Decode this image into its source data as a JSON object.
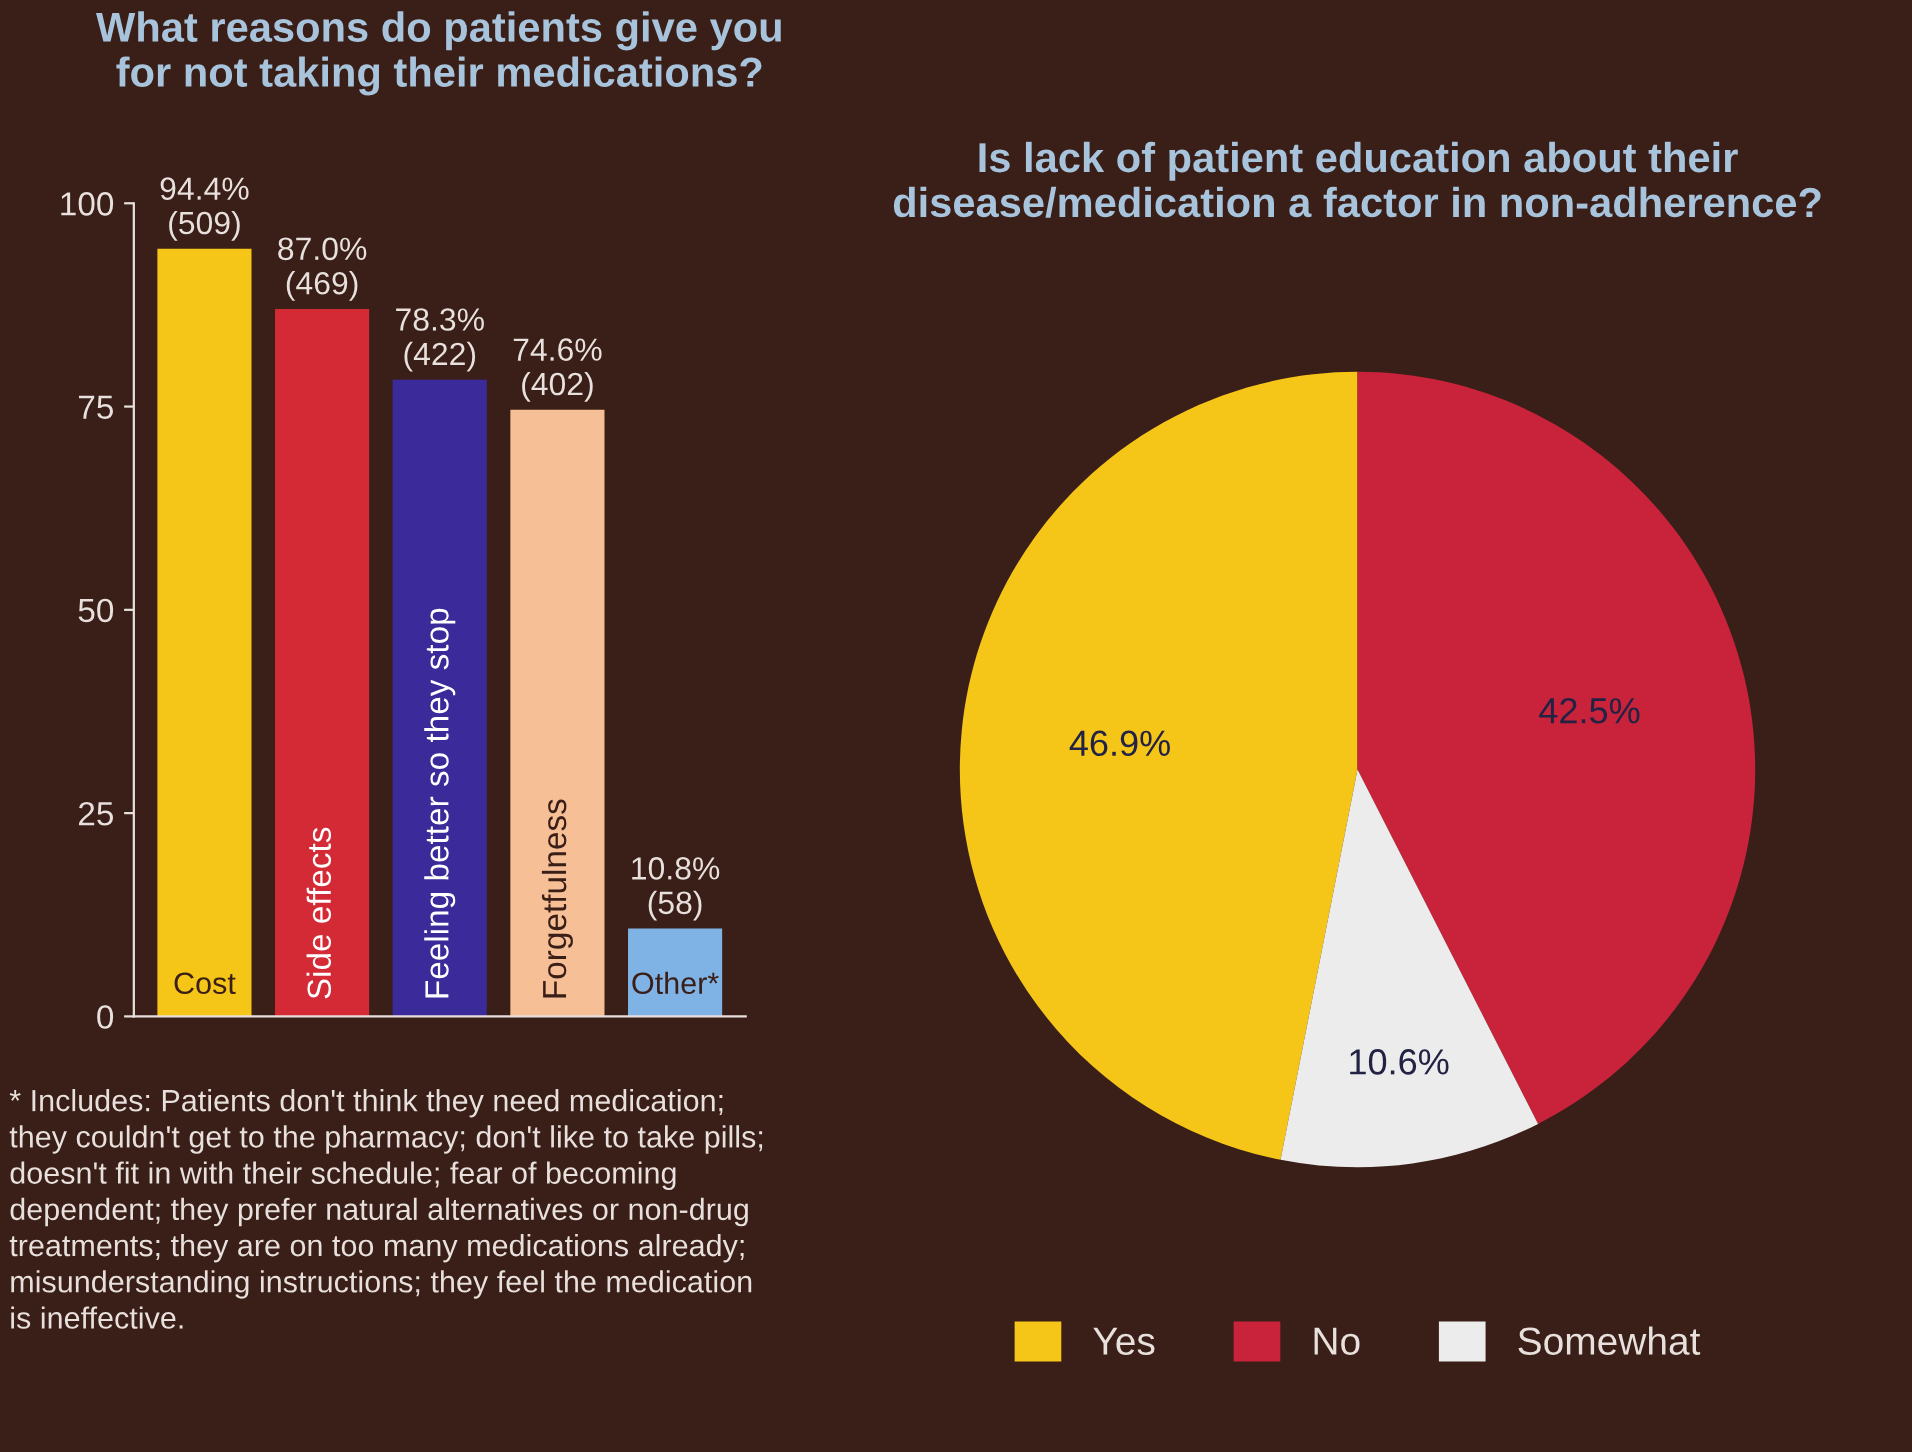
{
  "chart_data": [
    {
      "type": "bar",
      "title": "What reasons do patients give you\nfor not taking their medications?",
      "categories": [
        "Cost",
        "Side effects",
        "Feeling better so they stop",
        "Forgetfulness",
        "Other*"
      ],
      "values": [
        94.4,
        87.0,
        78.3,
        74.6,
        10.8
      ],
      "colors": [
        "#f5c518",
        "#d42a35",
        "#3a2a9a",
        "#f7bf95",
        "#7fb3e6"
      ],
      "value_labels": [
        "94.4%\n(509)",
        "87.0%\n(469)",
        "78.3%\n(422)",
        "74.6%\n(402)",
        "10.8%\n(58)"
      ],
      "ylim": [
        0,
        100
      ],
      "yticks": [
        0,
        25,
        50,
        75,
        100
      ],
      "grid": false,
      "legend": false,
      "annotations": [
        "* Includes: Patients don't think they need medication; they couldn't get to the pharmacy; don't like to take pills; doesn't fit in with their schedule; fear of becoming dependent; they prefer natural alternatives or non-drug treatments; they are on too many medications already; misunderstanding instructions; they feel the medication is ineffective."
      ]
    },
    {
      "type": "pie",
      "title": "Is lack of patient education about their\ndisease/medication a factor in non-adherence?",
      "categories": [
        "Yes",
        "No",
        "Somewhat"
      ],
      "values": [
        46.9,
        42.5,
        10.6
      ],
      "colors": [
        "#f5c518",
        "#c8233a",
        "#ececec"
      ],
      "value_labels": [
        "46.9%",
        "42.5%",
        "10.6%"
      ],
      "legend": "bottom"
    }
  ]
}
